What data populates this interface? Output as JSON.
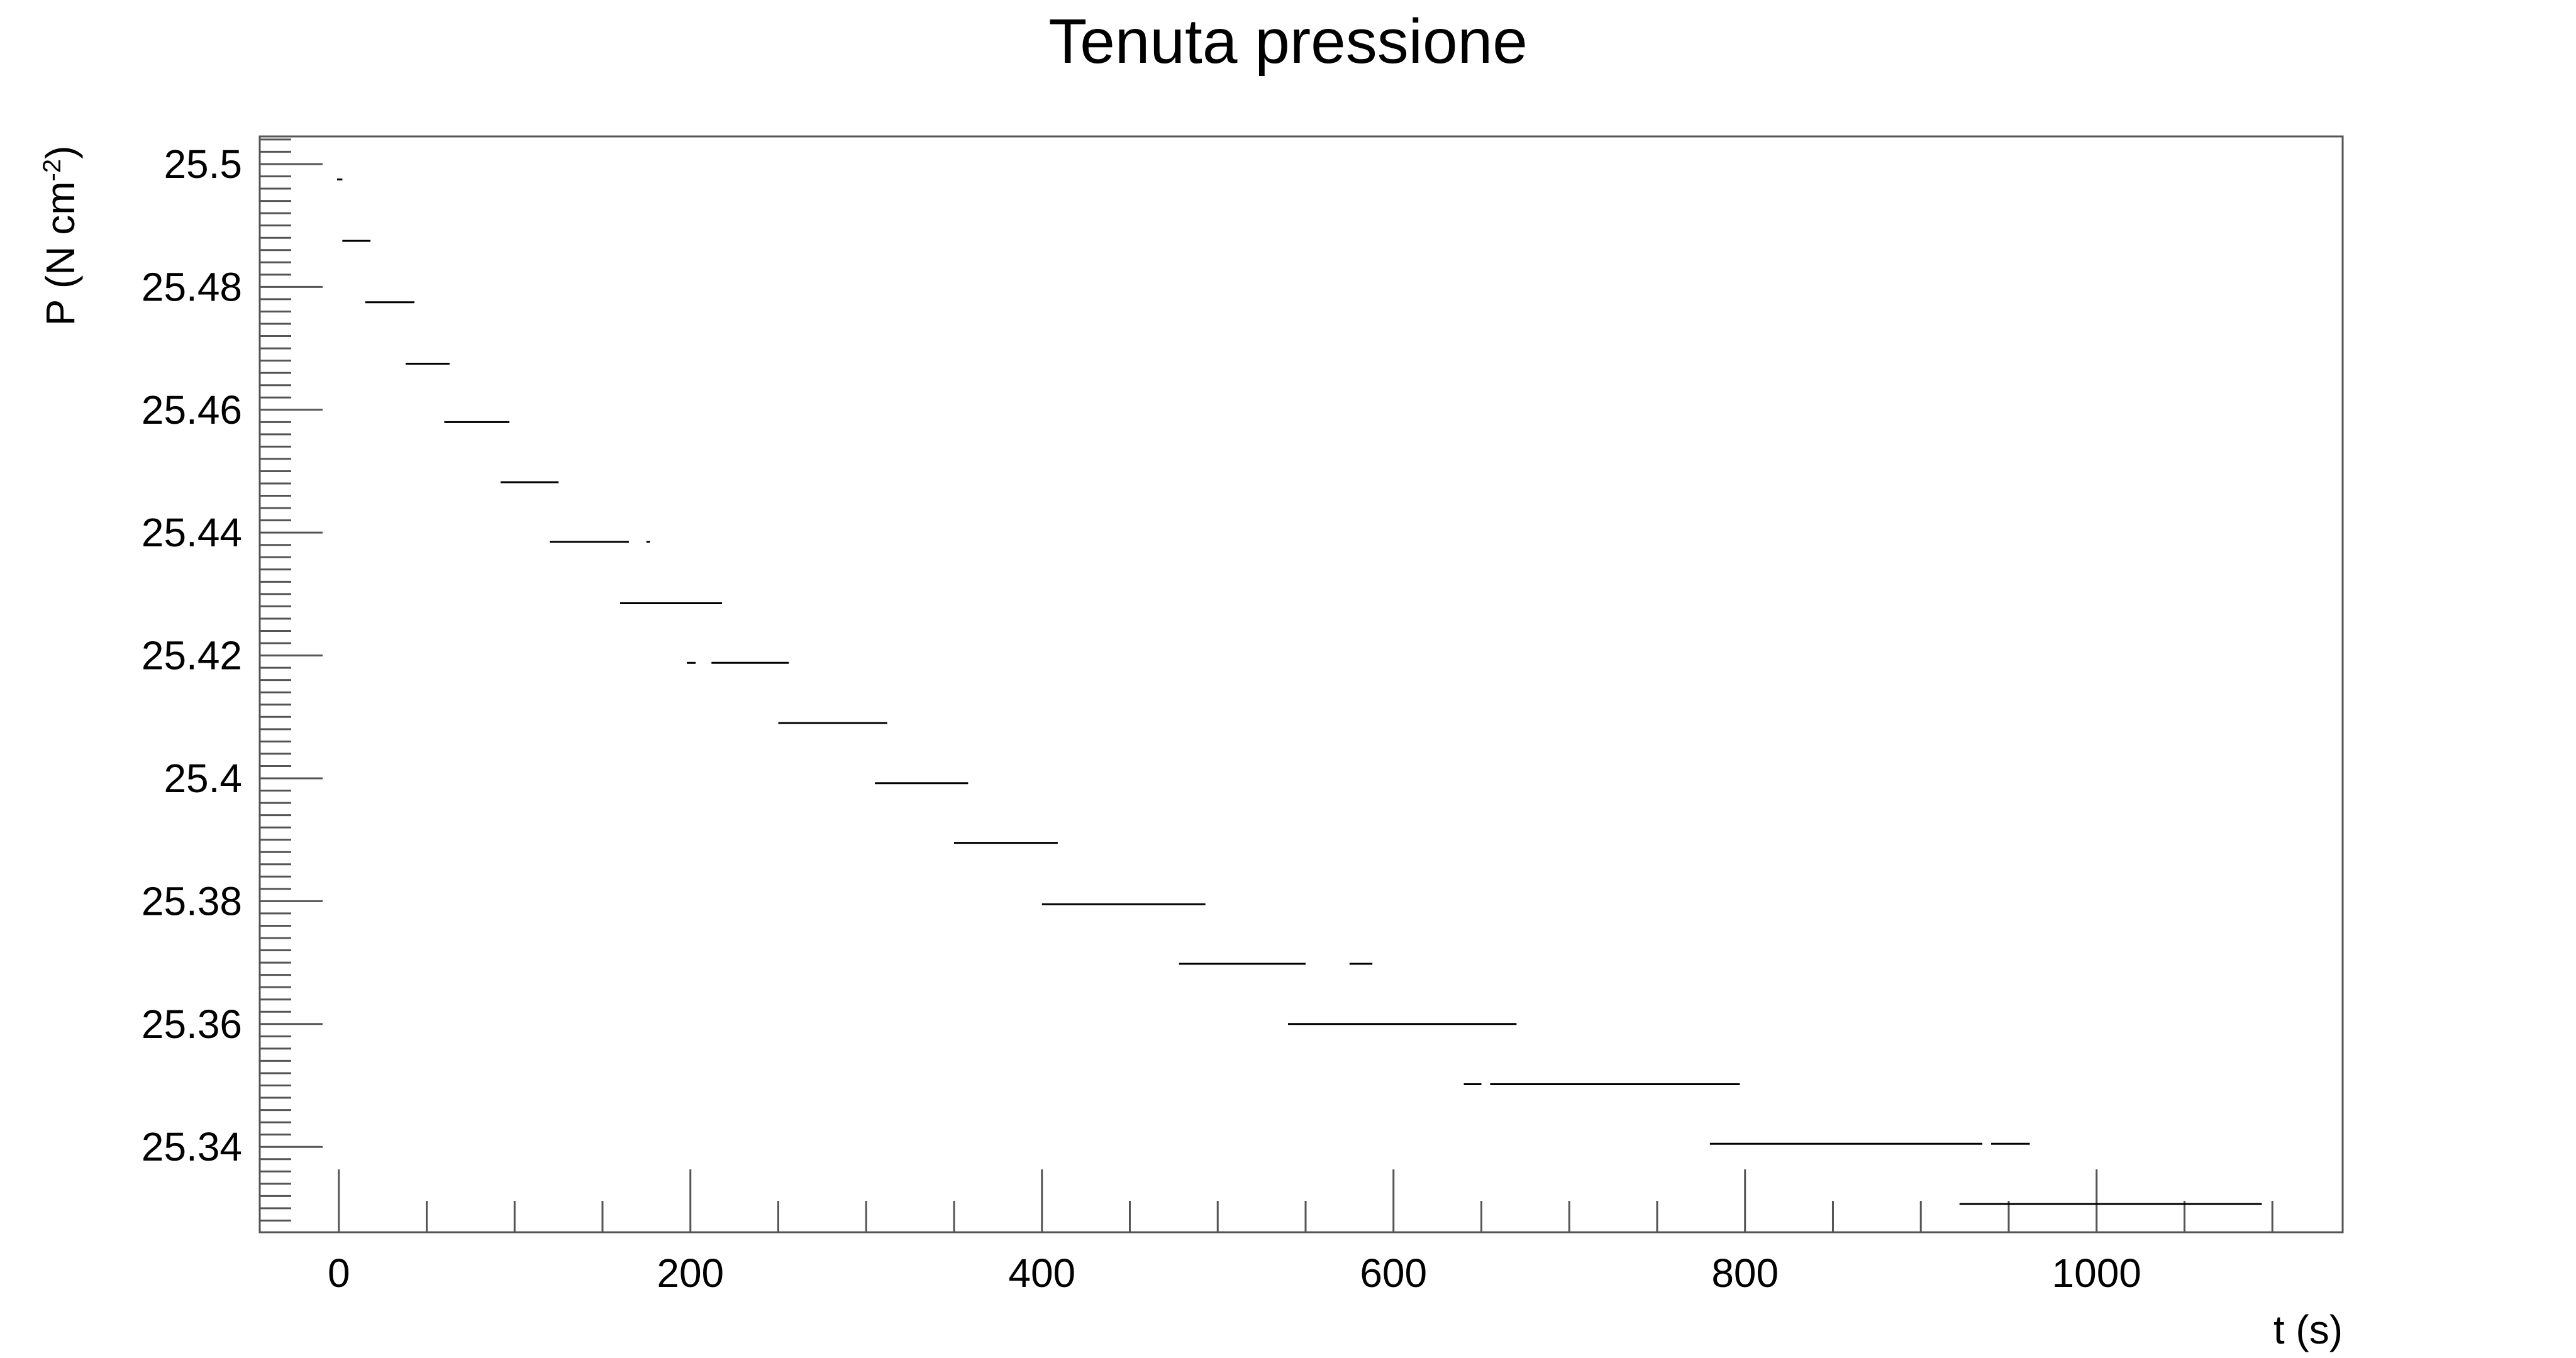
{
  "chart_data": {
    "type": "scatter",
    "title": "Tenuta pressione",
    "xlabel": "t (s)",
    "ylabel": {
      "text": "P (N cm",
      "sup": "-2",
      "close": ")"
    },
    "xlim": [
      -45,
      1140
    ],
    "ylim": [
      25.3261,
      25.5045
    ],
    "xticks": [
      0,
      200,
      400,
      600,
      800,
      1000
    ],
    "yticks": [
      25.34,
      25.36,
      25.38,
      25.4,
      25.42,
      25.44,
      25.46,
      25.48,
      25.5
    ],
    "ytick_labels": [
      "25.34",
      "25.36",
      "25.38",
      "25.4",
      "25.42",
      "25.44",
      "25.46",
      "25.48",
      "25.5"
    ],
    "grid": false,
    "legend": "none",
    "marker_color": "#000000",
    "series": [
      {
        "segments": [
          {
            "y": 25.4975,
            "x": [
              -1,
              2
            ]
          },
          {
            "y": 25.4875,
            "x": [
              2,
              18
            ]
          },
          {
            "y": 25.4775,
            "x": [
              15,
              43
            ]
          },
          {
            "y": 25.4675,
            "x": [
              38,
              63
            ]
          },
          {
            "y": 25.458,
            "x": [
              60,
              97
            ]
          },
          {
            "y": 25.4482,
            "x": [
              92,
              125
            ]
          },
          {
            "y": 25.4385,
            "x": [
              120,
              165
            ]
          },
          {
            "y": 25.4385,
            "x": [
              175,
              177
            ]
          },
          {
            "y": 25.4285,
            "x": [
              160,
              218
            ]
          },
          {
            "y": 25.4188,
            "x": [
              198,
              203
            ]
          },
          {
            "y": 25.4188,
            "x": [
              212,
              256
            ]
          },
          {
            "y": 25.409,
            "x": [
              250,
              312
            ]
          },
          {
            "y": 25.3992,
            "x": [
              305,
              358
            ]
          },
          {
            "y": 25.3895,
            "x": [
              350,
              409
            ]
          },
          {
            "y": 25.3795,
            "x": [
              400,
              493
            ]
          },
          {
            "y": 25.3698,
            "x": [
              478,
              550
            ]
          },
          {
            "y": 25.3698,
            "x": [
              575,
              588
            ]
          },
          {
            "y": 25.36,
            "x": [
              540,
              670
            ]
          },
          {
            "y": 25.3502,
            "x": [
              640,
              650
            ]
          },
          {
            "y": 25.3502,
            "x": [
              655,
              797
            ]
          },
          {
            "y": 25.3405,
            "x": [
              780,
              935
            ]
          },
          {
            "y": 25.3405,
            "x": [
              940,
              962
            ]
          },
          {
            "y": 25.3307,
            "x": [
              922,
              1094
            ]
          }
        ]
      }
    ]
  }
}
